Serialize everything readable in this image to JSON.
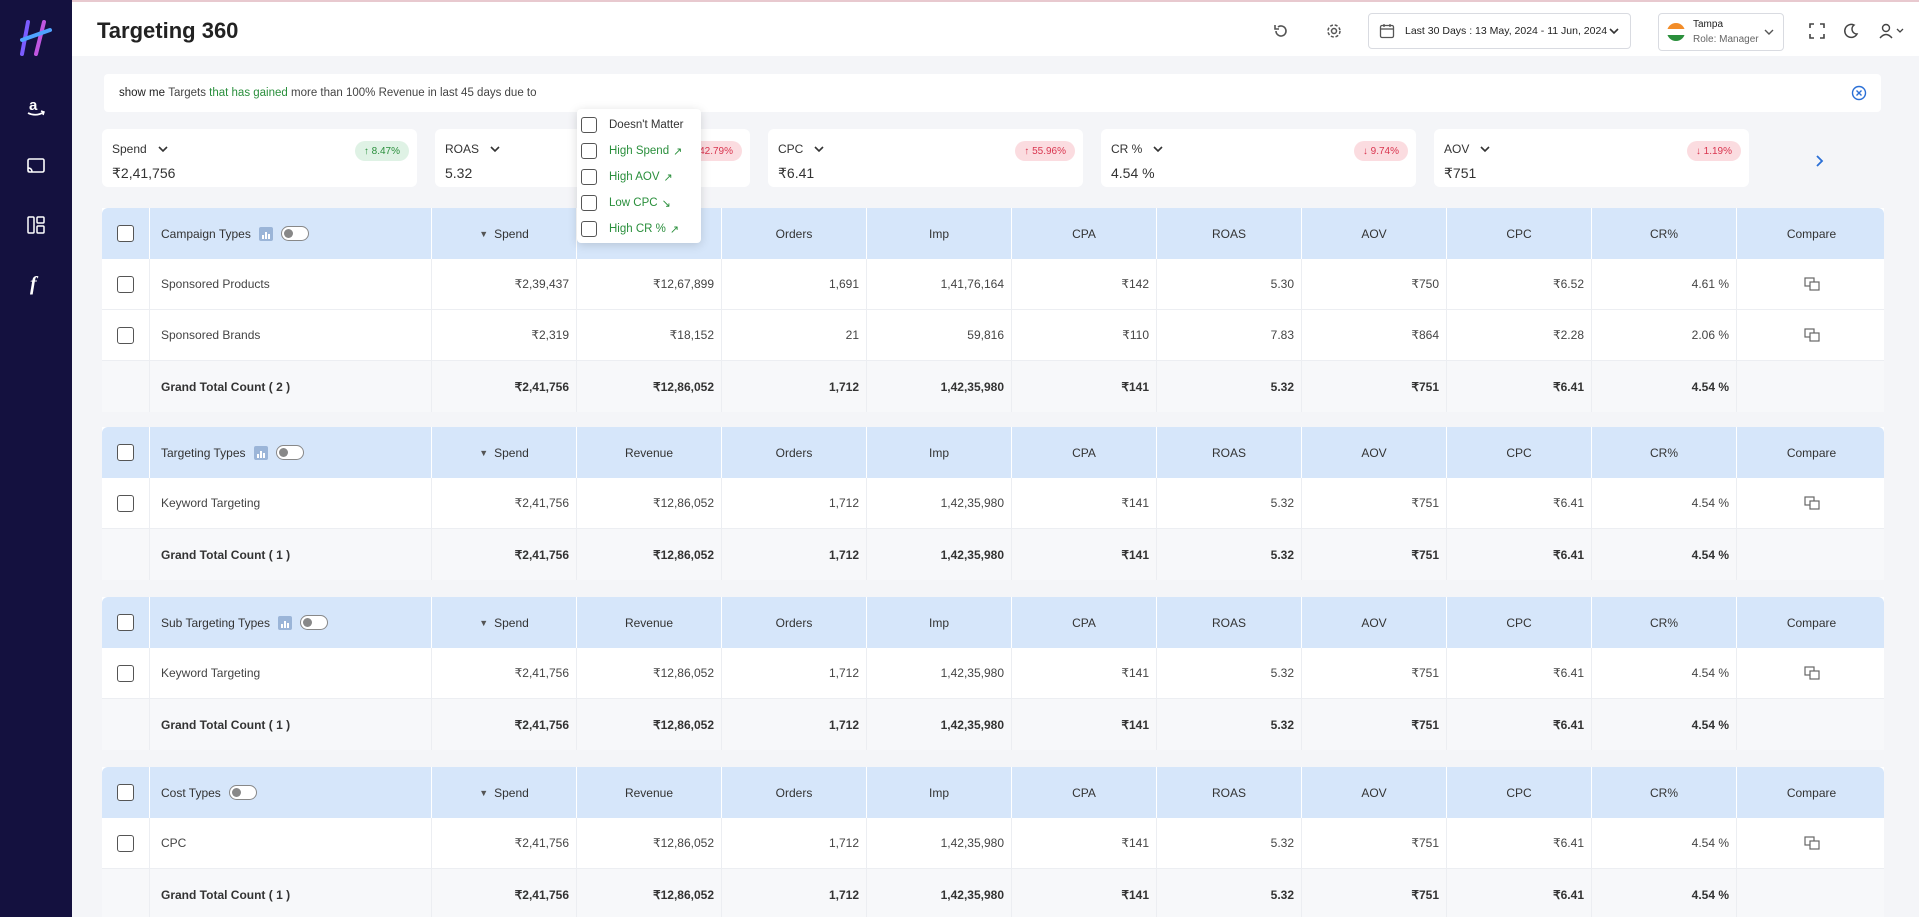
{
  "colors": {
    "sidebar_bg": "#14113f",
    "header_row_bg": "#d6e6fa",
    "positive": "#2a8f3c",
    "negative": "#d9354f",
    "logo_accent": "#7b5cff"
  },
  "sidebar": {
    "items": [
      {
        "icon": "amazon-icon"
      },
      {
        "icon": "cast-icon"
      },
      {
        "icon": "dashboard-icon"
      },
      {
        "icon": "function-icon"
      }
    ]
  },
  "header": {
    "title": "Targeting 360",
    "date_range": "Last 30 Days : 13 May, 2024 - 11 Jun, 2024",
    "location": "Tampa",
    "role": "Role: Manager"
  },
  "query": {
    "part1": "show me",
    "part2": "Targets",
    "part3": "that has gained",
    "part4": "more than 100% Revenue in last 45 days due to"
  },
  "metrics": [
    {
      "label": "Spend",
      "value": "₹2,41,756",
      "change": "↑ 8.47%",
      "trend": "up"
    },
    {
      "label": "ROAS",
      "value": "5.32",
      "change": "42.79%",
      "trend": "down"
    },
    {
      "label": "CPC",
      "value": "₹6.41",
      "change": "↑ 55.96%",
      "trend": "down"
    },
    {
      "label": "CR %",
      "value": "4.54 %",
      "change": "↓ 9.74%",
      "trend": "down"
    },
    {
      "label": "AOV",
      "value": "₹751",
      "change": "↓ 1.19%",
      "trend": "down"
    }
  ],
  "dropdown": {
    "options": [
      "Doesn't Matter",
      "High Spend",
      "High AOV",
      "Low CPC",
      "High CR %"
    ]
  },
  "columns": [
    "Spend",
    "Revenue",
    "Orders",
    "Imp",
    "CPA",
    "ROAS",
    "AOV",
    "CPC",
    "CR%",
    "Compare"
  ],
  "tables": [
    {
      "title": "Campaign Types",
      "rows": [
        {
          "name": "Sponsored Products",
          "values": [
            "₹2,39,437",
            "₹12,67,899",
            "1,691",
            "1,41,76,164",
            "₹142",
            "5.30",
            "₹750",
            "₹6.52",
            "4.61 %"
          ]
        },
        {
          "name": "Sponsored Brands",
          "values": [
            "₹2,319",
            "₹18,152",
            "21",
            "59,816",
            "₹110",
            "7.83",
            "₹864",
            "₹2.28",
            "2.06 %"
          ]
        }
      ],
      "total": {
        "name": "Grand Total Count ( 2 )",
        "values": [
          "₹2,41,756",
          "₹12,86,052",
          "1,712",
          "1,42,35,980",
          "₹141",
          "5.32",
          "₹751",
          "₹6.41",
          "4.54 %"
        ]
      }
    },
    {
      "title": "Targeting Types",
      "rows": [
        {
          "name": "Keyword Targeting",
          "values": [
            "₹2,41,756",
            "₹12,86,052",
            "1,712",
            "1,42,35,980",
            "₹141",
            "5.32",
            "₹751",
            "₹6.41",
            "4.54 %"
          ]
        }
      ],
      "total": {
        "name": "Grand Total Count ( 1 )",
        "values": [
          "₹2,41,756",
          "₹12,86,052",
          "1,712",
          "1,42,35,980",
          "₹141",
          "5.32",
          "₹751",
          "₹6.41",
          "4.54 %"
        ]
      }
    },
    {
      "title": "Sub Targeting Types",
      "rows": [
        {
          "name": "Keyword Targeting",
          "values": [
            "₹2,41,756",
            "₹12,86,052",
            "1,712",
            "1,42,35,980",
            "₹141",
            "5.32",
            "₹751",
            "₹6.41",
            "4.54 %"
          ]
        }
      ],
      "total": {
        "name": "Grand Total Count ( 1 )",
        "values": [
          "₹2,41,756",
          "₹12,86,052",
          "1,712",
          "1,42,35,980",
          "₹141",
          "5.32",
          "₹751",
          "₹6.41",
          "4.54 %"
        ]
      }
    },
    {
      "title": "Cost Types",
      "rows": [
        {
          "name": "CPC",
          "values": [
            "₹2,41,756",
            "₹12,86,052",
            "1,712",
            "1,42,35,980",
            "₹141",
            "5.32",
            "₹751",
            "₹6.41",
            "4.54 %"
          ]
        }
      ],
      "total": {
        "name": "Grand Total Count ( 1 )",
        "values": [
          "₹2,41,756",
          "₹12,86,052",
          "1,712",
          "1,42,35,980",
          "₹141",
          "5.32",
          "₹751",
          "₹6.41",
          "4.54 %"
        ]
      }
    }
  ]
}
